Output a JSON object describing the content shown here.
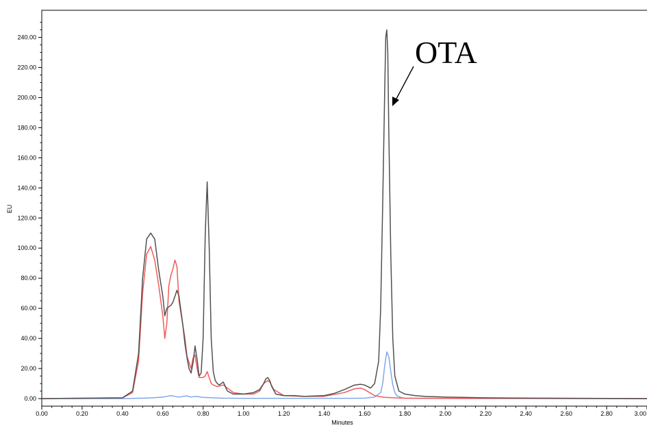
{
  "chart_data": {
    "type": "line",
    "xlabel": "Minutes",
    "ylabel": "EU",
    "xlim": [
      0,
      3.0
    ],
    "ylim": [
      -5,
      258
    ],
    "x_ticks": [
      "0.00",
      "0.20",
      "0.40",
      "0.60",
      "0.80",
      "1.00",
      "1.20",
      "1.40",
      "1.60",
      "1.80",
      "2.00",
      "2.20",
      "2.40",
      "2.60",
      "2.80",
      "3.00"
    ],
    "y_ticks": [
      "0.00",
      "20.00",
      "40.00",
      "60.00",
      "80.00",
      "100.00",
      "120.00",
      "140.00",
      "160.00",
      "180.00",
      "200.00",
      "220.00",
      "240.00"
    ],
    "grid": false,
    "annotations": [
      {
        "text": "OTA",
        "points_to_x": 1.71,
        "points_to_y": 195
      }
    ],
    "series": [
      {
        "color": "#505050",
        "x": [
          0,
          0.4,
          0.45,
          0.48,
          0.5,
          0.52,
          0.54,
          0.56,
          0.58,
          0.6,
          0.61,
          0.62,
          0.64,
          0.65,
          0.66,
          0.67,
          0.68,
          0.7,
          0.71,
          0.72,
          0.73,
          0.74,
          0.75,
          0.76,
          0.77,
          0.78,
          0.79,
          0.8,
          0.81,
          0.82,
          0.83,
          0.84,
          0.85,
          0.86,
          0.87,
          0.88,
          0.9,
          0.92,
          0.95,
          1.0,
          1.05,
          1.08,
          1.1,
          1.11,
          1.12,
          1.13,
          1.14,
          1.16,
          1.2,
          1.25,
          1.3,
          1.4,
          1.45,
          1.5,
          1.55,
          1.58,
          1.6,
          1.63,
          1.65,
          1.67,
          1.68,
          1.69,
          1.7,
          1.705,
          1.71,
          1.715,
          1.72,
          1.73,
          1.74,
          1.75,
          1.77,
          1.8,
          1.85,
          1.9,
          2.0,
          2.2,
          2.5,
          3.0
        ],
        "y": [
          0,
          0.5,
          5,
          30,
          80,
          106,
          110,
          106,
          85,
          68,
          55,
          60,
          62,
          64,
          68,
          72,
          68,
          48,
          36,
          27,
          20,
          17,
          24,
          35,
          26,
          15,
          17,
          40,
          108,
          144,
          100,
          40,
          18,
          12,
          10,
          9,
          11,
          5,
          3,
          3,
          4,
          6,
          10,
          13,
          14,
          12,
          8,
          3,
          2,
          2,
          1.5,
          2,
          3.5,
          6,
          9,
          9.5,
          9,
          7,
          10,
          25,
          60,
          130,
          205,
          240,
          245,
          230,
          180,
          95,
          40,
          15,
          5,
          3,
          2,
          1.5,
          1,
          0.5,
          0.3,
          0
        ]
      },
      {
        "color": "#f05a5a",
        "x": [
          0,
          0.4,
          0.45,
          0.48,
          0.5,
          0.52,
          0.54,
          0.56,
          0.58,
          0.6,
          0.61,
          0.62,
          0.63,
          0.64,
          0.65,
          0.66,
          0.67,
          0.68,
          0.7,
          0.71,
          0.72,
          0.74,
          0.75,
          0.76,
          0.77,
          0.78,
          0.8,
          0.81,
          0.82,
          0.83,
          0.84,
          0.85,
          0.87,
          0.9,
          0.95,
          1.0,
          1.05,
          1.08,
          1.1,
          1.12,
          1.13,
          1.15,
          1.2,
          1.3,
          1.4,
          1.5,
          1.55,
          1.58,
          1.6,
          1.65,
          1.7,
          1.75,
          1.8,
          2.0,
          3.0
        ],
        "y": [
          0,
          0.5,
          4,
          25,
          70,
          96,
          101,
          92,
          75,
          55,
          40,
          50,
          75,
          82,
          86,
          92,
          88,
          65,
          48,
          40,
          28,
          20,
          27,
          29,
          20,
          14,
          14,
          15,
          18,
          14,
          10,
          9,
          8,
          9,
          4,
          3,
          3,
          5,
          10,
          12,
          11,
          6,
          2,
          1.5,
          1.5,
          4,
          6.5,
          7,
          6,
          2,
          0.8,
          0.5,
          0.3,
          0.2,
          0
        ]
      },
      {
        "color": "#7fa7e8",
        "x": [
          0,
          0.4,
          0.5,
          0.55,
          0.6,
          0.62,
          0.64,
          0.66,
          0.68,
          0.7,
          0.72,
          0.74,
          0.76,
          0.78,
          0.8,
          0.85,
          0.9,
          1.0,
          1.1,
          1.2,
          1.3,
          1.4,
          1.5,
          1.6,
          1.65,
          1.68,
          1.69,
          1.7,
          1.71,
          1.72,
          1.73,
          1.74,
          1.75,
          1.76,
          1.78,
          1.8,
          1.85,
          2.0,
          3.0
        ],
        "y": [
          0,
          0,
          0.3,
          0.5,
          1,
          1.5,
          2,
          1.5,
          1,
          1.5,
          1.8,
          1,
          1.5,
          1.2,
          0.8,
          0.5,
          0.3,
          0.2,
          0.2,
          0.2,
          0.2,
          0.2,
          0.2,
          0.3,
          1,
          4,
          10,
          22,
          31,
          28,
          18,
          9,
          4,
          2,
          0.8,
          0.3,
          0.2,
          0.1,
          0
        ]
      }
    ]
  }
}
